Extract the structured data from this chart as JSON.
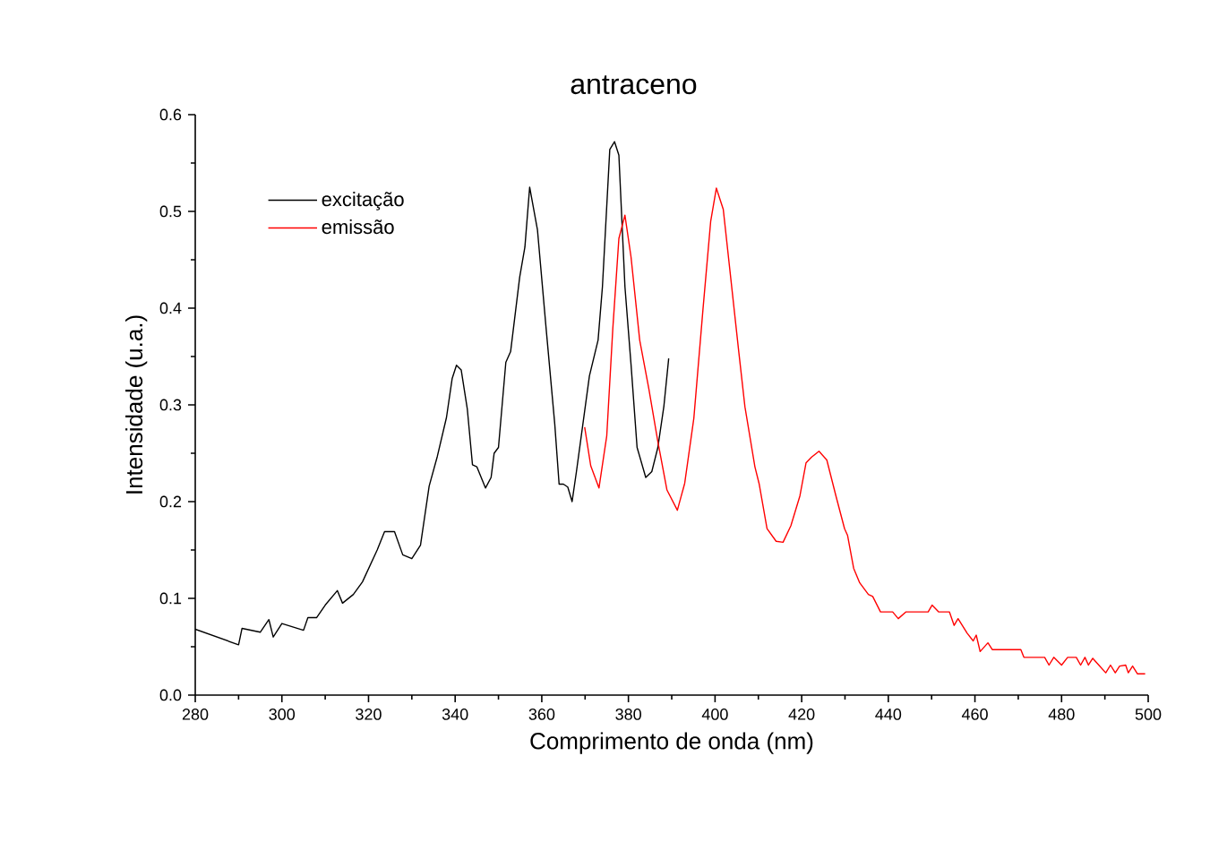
{
  "chart_data": {
    "type": "line",
    "title": "antraceno",
    "xlabel": "Comprimento de onda (nm)",
    "ylabel": "Intensidade (u.a.)",
    "xlim": [
      280,
      500
    ],
    "xticks": [
      280,
      300,
      320,
      340,
      360,
      380,
      400,
      420,
      440,
      460,
      480,
      500
    ],
    "ylim": [
      0,
      0.6
    ],
    "yticks": [
      {
        "value": 0,
        "label": "0.0"
      },
      0.1,
      0.2,
      0.3,
      0.4,
      0.5,
      0.6
    ],
    "grid": false,
    "legend": "top left",
    "marker": "none",
    "line_style": "solid",
    "series": [
      {
        "name": "excitação",
        "color": "#000000",
        "x": [
          280,
          290,
          290.8,
          295,
          297,
          298,
          300,
          305,
          306,
          308,
          310,
          312.8,
          314,
          316.5,
          318.6,
          322,
          323.7,
          326,
          327.9,
          330,
          332,
          334,
          335.9,
          338,
          339.3,
          340.3,
          341.4,
          342.8,
          344,
          345,
          347,
          348.3,
          349,
          350,
          351.7,
          352.8,
          354.9,
          356.1,
          357.2,
          359,
          361,
          363,
          364,
          365,
          366,
          367,
          368,
          371,
          373,
          374,
          375.7,
          376.8,
          377.8,
          379.2,
          380.6,
          382,
          384,
          385.4,
          386.8,
          388.2,
          389.3
        ],
        "values": [
          0.068,
          0.052,
          0.069,
          0.065,
          0.078,
          0.06,
          0.074,
          0.067,
          0.08,
          0.08,
          0.093,
          0.108,
          0.095,
          0.104,
          0.117,
          0.15,
          0.169,
          0.169,
          0.145,
          0.141,
          0.155,
          0.216,
          0.247,
          0.287,
          0.327,
          0.341,
          0.336,
          0.296,
          0.238,
          0.236,
          0.214,
          0.225,
          0.25,
          0.256,
          0.344,
          0.355,
          0.432,
          0.463,
          0.525,
          0.481,
          0.379,
          0.28,
          0.218,
          0.218,
          0.215,
          0.2,
          0.231,
          0.33,
          0.367,
          0.422,
          0.564,
          0.572,
          0.558,
          0.422,
          0.342,
          0.256,
          0.225,
          0.231,
          0.256,
          0.299,
          0.348
        ]
      },
      {
        "name": "emissão",
        "color": "#ff0000",
        "x": [
          369.9,
          371.3,
          373.2,
          375,
          376.4,
          377.8,
          379.2,
          380.6,
          382.6,
          384.7,
          386.8,
          388.9,
          391.3,
          393,
          395.1,
          397.2,
          399,
          400.3,
          401.9,
          403.7,
          405.5,
          406.9,
          409.2,
          410.2,
          412,
          414.1,
          415.7,
          417.5,
          419.6,
          421,
          422.3,
          424,
          425.8,
          427.9,
          429.9,
          430.6,
          432,
          433.4,
          435.4,
          436.4,
          438.2,
          441,
          442.3,
          444.1,
          449.2,
          450.1,
          451.6,
          454.1,
          455.2,
          456.1,
          458.2,
          459.6,
          460.3,
          461.2,
          463,
          464,
          470.6,
          471.3,
          476.1,
          477.1,
          478.2,
          480,
          481.4,
          483.4,
          484.4,
          485.4,
          486.2,
          487.2,
          488.6,
          490.2,
          491.3,
          492.4,
          493.4,
          494.8,
          495.4,
          496.4,
          497.5,
          499.3
        ],
        "values": [
          0.277,
          0.237,
          0.214,
          0.268,
          0.379,
          0.472,
          0.496,
          0.453,
          0.367,
          0.317,
          0.262,
          0.212,
          0.191,
          0.219,
          0.286,
          0.398,
          0.49,
          0.524,
          0.502,
          0.428,
          0.354,
          0.298,
          0.236,
          0.218,
          0.172,
          0.159,
          0.158,
          0.175,
          0.206,
          0.24,
          0.246,
          0.252,
          0.243,
          0.206,
          0.172,
          0.165,
          0.131,
          0.116,
          0.104,
          0.102,
          0.086,
          0.086,
          0.079,
          0.086,
          0.086,
          0.093,
          0.086,
          0.086,
          0.072,
          0.079,
          0.064,
          0.056,
          0.062,
          0.045,
          0.054,
          0.047,
          0.047,
          0.039,
          0.039,
          0.031,
          0.039,
          0.031,
          0.039,
          0.039,
          0.031,
          0.039,
          0.031,
          0.038,
          0.031,
          0.023,
          0.031,
          0.023,
          0.03,
          0.031,
          0.023,
          0.03,
          0.022,
          0.022
        ]
      }
    ]
  }
}
